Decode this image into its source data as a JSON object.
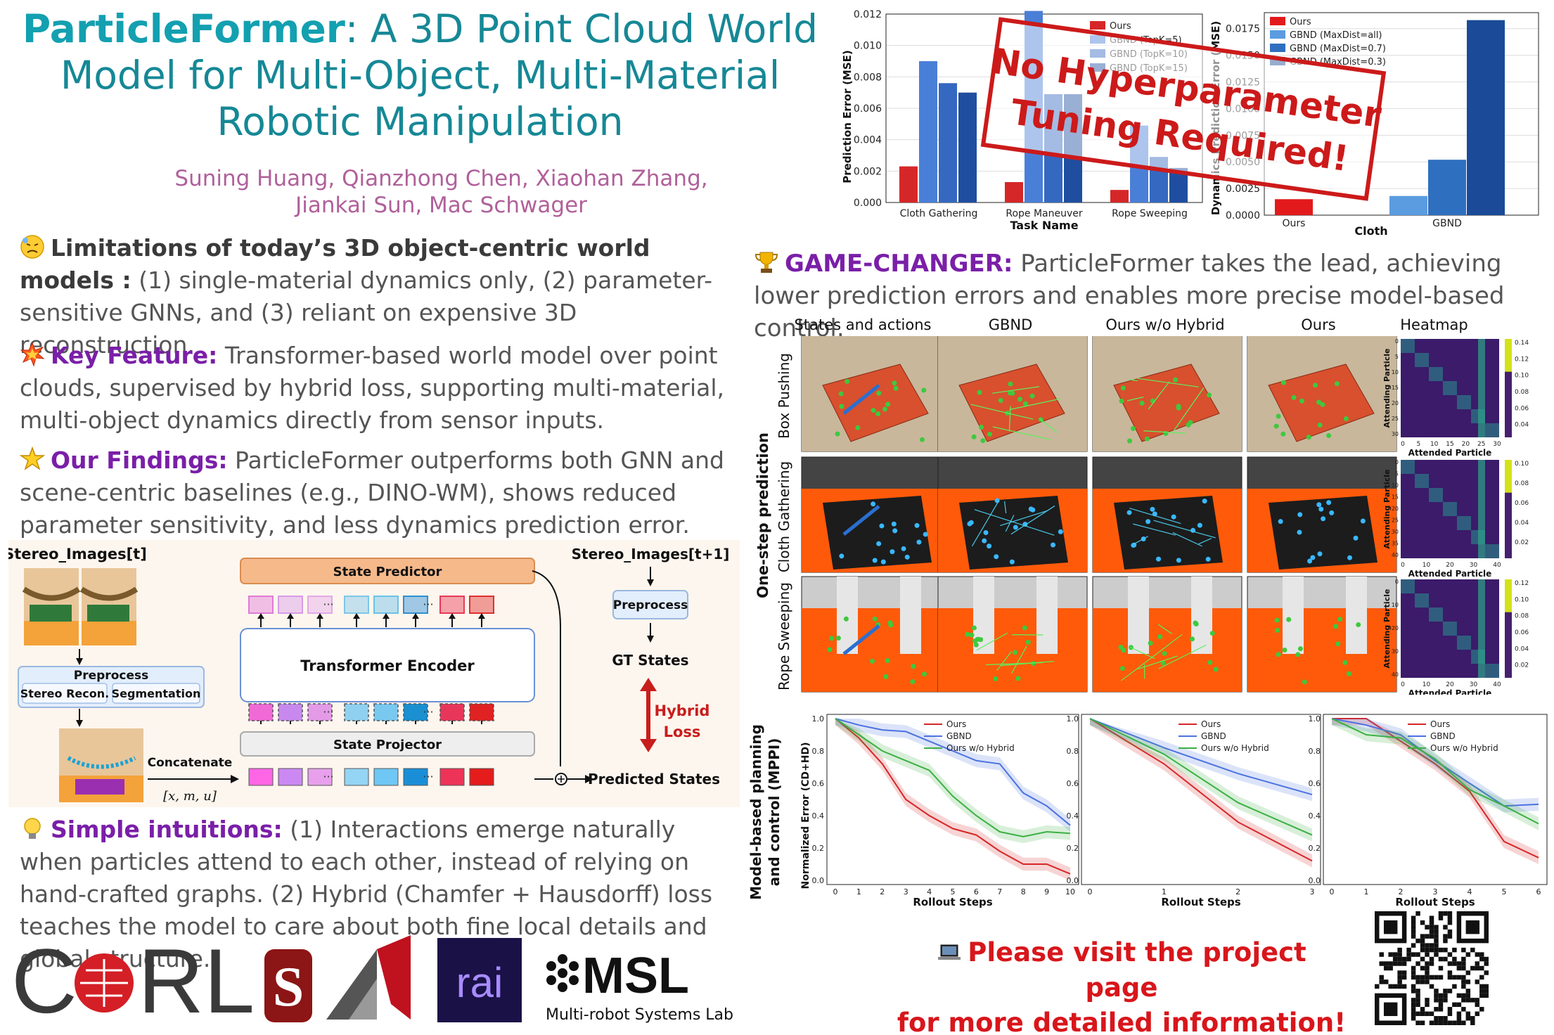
{
  "title": {
    "bold": "ParticleFormer",
    "rest1": ": A 3D Point Cloud World",
    "line2": "Model for Multi-Object, Multi-Material",
    "line3": "Robotic Manipulation"
  },
  "authors": {
    "line1": "Suning Huang, Qianzhong Chen, Xiaohan Zhang,",
    "line2": "Jiankai Sun, Mac Schwager"
  },
  "limitations": {
    "heading": "Limitations of today’s 3D object-centric world models :",
    "body": "(1) single-material dynamics only, (2) parameter-sensitive GNNs, and (3) reliant on expensive 3D reconstruction."
  },
  "key_feature": {
    "heading": "Key Feature:",
    "body": "Transformer-based world model over point clouds, supervised by hybrid loss, supporting multi-material, multi-object dynamics directly from sensor inputs."
  },
  "findings": {
    "heading": "Our Findings:",
    "body": "ParticleFormer outperforms both GNN and scene-centric baselines (e.g., DINO-WM), shows reduced parameter sensitivity, and less dynamics prediction error."
  },
  "intuitions": {
    "heading": "Simple intuitions:",
    "body": "(1) Interactions emerge naturally when particles attend to each other, instead of relying on hand-crafted graphs. (2) Hybrid (Chamfer + Hausdorff) loss teaches the model to care about both fine local details and global structure."
  },
  "game_changer": {
    "heading": "GAME-CHANGER:",
    "body": "ParticleFormer takes the lead, achieving lower prediction errors and enables more precise model-based control."
  },
  "stamp": {
    "line1": "No Hyperparameter",
    "line2": "Tuning Required!"
  },
  "visit": {
    "line1": "Please visit the project page",
    "line2": "for more detailed information!"
  },
  "diagram": {
    "stereo_t": "Stereo_Images[t]",
    "stereo_t1": "Stereo_Images[t+1]",
    "preprocess": "Preprocess",
    "stereo_recon": "Stereo Recon.",
    "segmentation": "Segmentation",
    "state_predictor": "State Predictor",
    "transformer": "Transformer Encoder",
    "state_projector": "State Projector",
    "concatenate": "Concatenate",
    "xmu": "[x, m, u]",
    "gt_states": "GT States",
    "hybrid": "Hybrid",
    "loss": "Loss",
    "predicted": "Predicted States",
    "preprocess2": "Preprocess",
    "ellipsis": "···"
  },
  "grid": {
    "columns": [
      "States and actions",
      "GBND",
      "Ours w/o Hybrid",
      "Ours",
      "Heatmap"
    ],
    "rows": [
      "Box Pushing",
      "Cloth Gathering",
      "Rope Sweeping"
    ],
    "side_label": "One-step prediction",
    "heatmap_ylabel": "Attending Particle",
    "heatmap_xlabel": "Attended Particle",
    "heatmap_ticks": {
      "box": [
        "0.14",
        "0.12",
        "0.10",
        "0.08",
        "0.06",
        "0.04"
      ],
      "cloth": [
        "0.10",
        "0.08",
        "0.06",
        "0.04",
        "0.02"
      ],
      "rope": [
        "0.12",
        "0.10",
        "0.08",
        "0.06",
        "0.04",
        "0.02"
      ]
    },
    "heatmap_xticks": {
      "box": [
        "0",
        "5",
        "10",
        "15",
        "20",
        "25",
        "30"
      ],
      "cloth": [
        "0",
        "10",
        "20",
        "30",
        "40"
      ],
      "rope": [
        "0",
        "10",
        "20",
        "30",
        "40"
      ]
    },
    "heatmap_yticks": {
      "box": [
        "0",
        "5",
        "10",
        "15",
        "20",
        "25",
        "30"
      ],
      "cloth": [
        "0",
        "5",
        "10",
        "15",
        "20",
        "25",
        "30",
        "35",
        "40"
      ],
      "rope": [
        "0",
        "10",
        "20",
        "30",
        "40"
      ]
    }
  },
  "chart_data": [
    {
      "type": "bar",
      "categories": [
        "Cloth Gathering",
        "Rope Maneuver",
        "Rope Sweeping"
      ],
      "xlabel": "Task Name",
      "ylabel": "Prediction Error (MSE)",
      "ylim": [
        0,
        0.012
      ],
      "yticks": [
        "0.000",
        "0.002",
        "0.004",
        "0.006",
        "0.008",
        "0.010",
        "0.012"
      ],
      "grid": true,
      "legend": "top-right",
      "series": [
        {
          "name": "Ours",
          "color": "#d62728",
          "values": [
            0.0023,
            0.0013,
            0.0008
          ]
        },
        {
          "name": "GBND (TopK=5)",
          "color": "#4a7fd8",
          "values": [
            0.009,
            0.0122,
            0.0049
          ]
        },
        {
          "name": "GBND (TopK=10)",
          "color": "#3568c0",
          "values": [
            0.0076,
            0.0069,
            0.0029
          ]
        },
        {
          "name": "GBND (TopK=15)",
          "color": "#1f4ea0",
          "values": [
            0.007,
            0.0069,
            0.0022
          ]
        }
      ]
    },
    {
      "type": "bar",
      "categories": [
        "Ours",
        "GBND"
      ],
      "group_label": "Cloth",
      "xlabel": "Cloth",
      "ylabel": "Dynamics Prediction Error (MSE)",
      "ylim": [
        0,
        0.019
      ],
      "yticks": [
        "0.0000",
        "0.0025",
        "0.0050",
        "0.0075",
        "0.0100",
        "0.0125",
        "0.0150",
        "0.0175"
      ],
      "grid": true,
      "legend": "top-left",
      "series": [
        {
          "name": "Ours",
          "color": "#e31a1c",
          "values": [
            0.0015,
            null
          ]
        },
        {
          "name": "GBND (MaxDist=all)",
          "color": "#5b9be0",
          "values": [
            null,
            0.0018
          ]
        },
        {
          "name": "GBND (MaxDist=0.7)",
          "color": "#2f6fc0",
          "values": [
            null,
            0.0052
          ]
        },
        {
          "name": "GBND (MaxDist=0.3)",
          "color": "#1a4a98",
          "values": [
            null,
            0.0183
          ]
        }
      ]
    },
    {
      "type": "line",
      "x": [
        0,
        1,
        2,
        3,
        4,
        5,
        6,
        7,
        8,
        9,
        10
      ],
      "xlabel": "Rollout Steps",
      "ylabel": "Normalized Error (CD+HD)",
      "ylim": [
        0,
        1.0
      ],
      "legend": "top-right",
      "yticks": [
        "0.0",
        "0.2",
        "0.4",
        "0.6",
        "0.8",
        "1.0"
      ],
      "series": [
        {
          "name": "Ours",
          "color": "#d62728",
          "values": [
            1.0,
            0.88,
            0.72,
            0.5,
            0.4,
            0.32,
            0.28,
            0.18,
            0.1,
            0.1,
            0.04
          ]
        },
        {
          "name": "GBND",
          "color": "#4c72e0",
          "values": [
            1.0,
            0.96,
            0.93,
            0.92,
            0.86,
            0.8,
            0.74,
            0.72,
            0.54,
            0.46,
            0.34
          ]
        },
        {
          "name": "Ours w/o Hybrid",
          "color": "#3cb043",
          "values": [
            1.0,
            0.9,
            0.8,
            0.74,
            0.68,
            0.52,
            0.4,
            0.3,
            0.27,
            0.3,
            0.29
          ]
        }
      ]
    },
    {
      "type": "line",
      "x": [
        0,
        1,
        2,
        3
      ],
      "xlabel": "Rollout Steps",
      "ylim": [
        0,
        1.0
      ],
      "legend": "top-right",
      "yticks": [
        "0.0",
        "0.2",
        "0.4",
        "0.6",
        "0.8",
        "1.0"
      ],
      "series": [
        {
          "name": "Ours",
          "color": "#d62728",
          "values": [
            1.0,
            0.72,
            0.36,
            0.12
          ]
        },
        {
          "name": "GBND",
          "color": "#4c72e0",
          "values": [
            1.0,
            0.82,
            0.66,
            0.53
          ]
        },
        {
          "name": "Ours w/o Hybrid",
          "color": "#3cb043",
          "values": [
            1.0,
            0.78,
            0.48,
            0.28
          ]
        }
      ]
    },
    {
      "type": "line",
      "x": [
        0,
        1,
        2,
        3,
        4,
        5,
        6
      ],
      "xlabel": "Rollout Steps",
      "ylim": [
        0,
        1.0
      ],
      "legend": "top-right",
      "yticks": [
        "0.0",
        "0.2",
        "0.4",
        "0.6",
        "0.8",
        "1.0"
      ],
      "series": [
        {
          "name": "Ours",
          "color": "#d62728",
          "values": [
            1.0,
            1.0,
            0.86,
            0.72,
            0.55,
            0.24,
            0.14
          ]
        },
        {
          "name": "GBND",
          "color": "#4c72e0",
          "values": [
            1.0,
            0.96,
            0.9,
            0.74,
            0.6,
            0.46,
            0.47
          ]
        },
        {
          "name": "Ours w/o Hybrid",
          "color": "#3cb043",
          "values": [
            1.0,
            0.9,
            0.88,
            0.75,
            0.56,
            0.46,
            0.35
          ]
        }
      ]
    }
  ],
  "mppi_label": {
    "line1": "Model-based planning",
    "line2": "and control (MPPI)"
  },
  "logos": {
    "corl": "C  RL",
    "rai": "rai",
    "msl": "MSL",
    "msl_sub": "Multi-robot Systems Lab"
  }
}
